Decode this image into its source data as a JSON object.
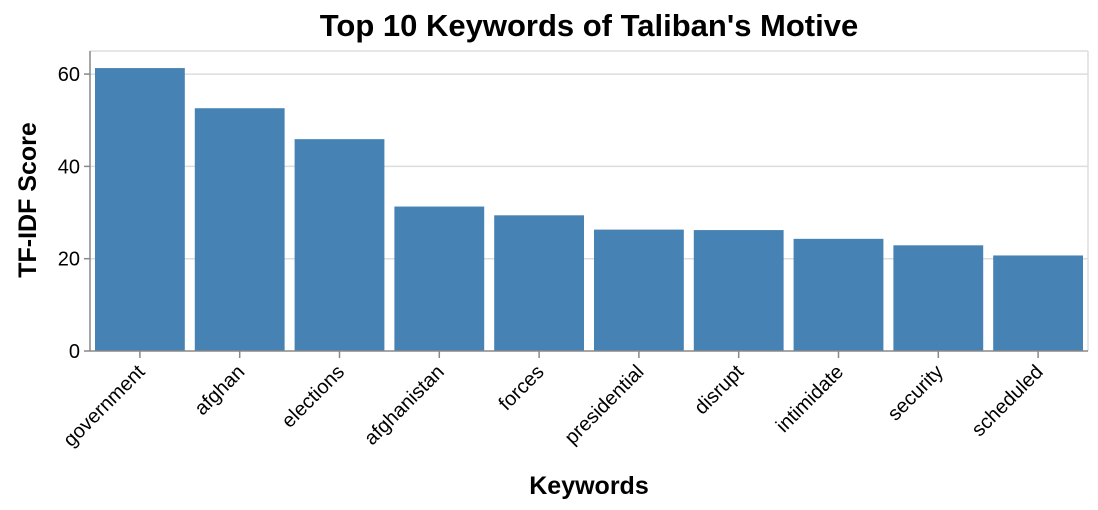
{
  "chart_data": {
    "type": "bar",
    "title": "Top 10 Keywords of Taliban's Motive",
    "xlabel": "Keywords",
    "ylabel": "TF-IDF Score",
    "categories": [
      "government",
      "afghan",
      "elections",
      "afghanistan",
      "forces",
      "presidential",
      "disrupt",
      "intimidate",
      "security",
      "scheduled"
    ],
    "values": [
      61.3,
      52.6,
      45.9,
      31.3,
      29.4,
      26.3,
      26.2,
      24.3,
      22.9,
      20.7
    ],
    "ylim": [
      0,
      65
    ],
    "yticks": [
      0,
      20,
      40,
      60
    ],
    "grid": true,
    "bar_color": "#4682b4",
    "grid_color": "#dddddd",
    "axis_color": "#888888"
  }
}
